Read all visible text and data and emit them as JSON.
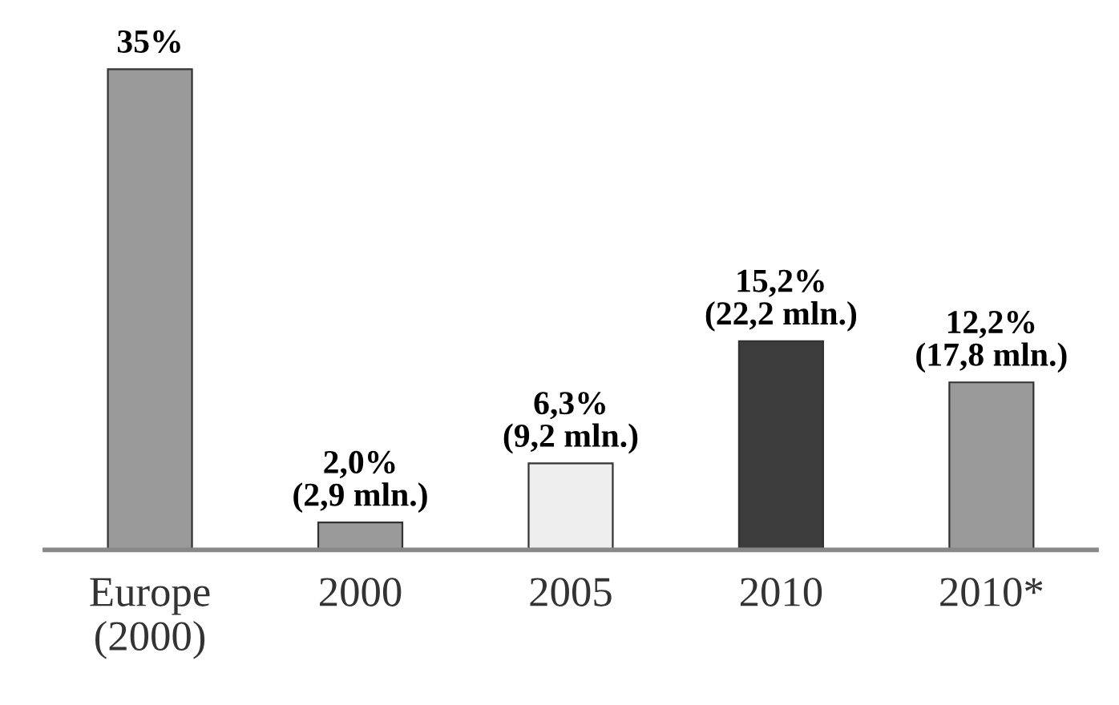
{
  "chart_data": {
    "type": "bar",
    "categories": [
      "Europe\n(2000)",
      "2000",
      "2005",
      "2010",
      "2010*"
    ],
    "values": [
      35,
      2.0,
      6.3,
      15.2,
      12.2
    ],
    "colors": [
      "#9a9a9a",
      "#9a9a9a",
      "#eeeeee",
      "#3c3c3c",
      "#9a9a9a"
    ],
    "value_labels": [
      "35%",
      "2,0%\n(2,9 mln.)",
      "6,3%\n(9,2 mln.)",
      "15,2%\n(22,2 mln.)",
      "12,2%\n(17,8 mln.)"
    ],
    "grid": false,
    "legend": false
  }
}
